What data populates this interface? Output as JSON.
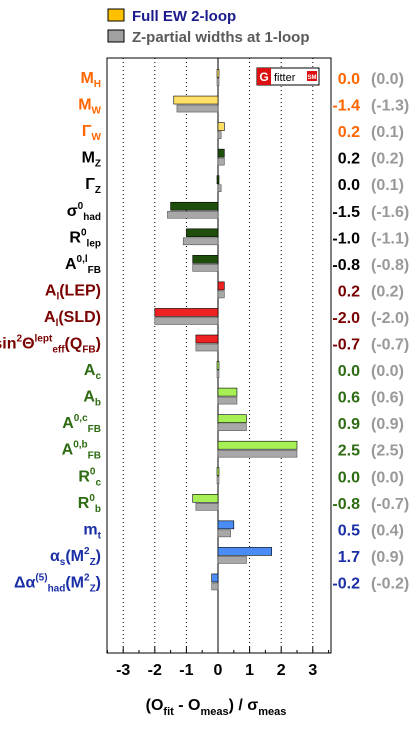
{
  "chart_data": {
    "type": "bar",
    "orientation": "horizontal",
    "legend": [
      {
        "name": "Full EW 2-loop",
        "color": "#ffc000"
      },
      {
        "name": "Z-partial widths at 1-loop",
        "color": "#a0a0a0"
      }
    ],
    "xlabel_parts": [
      {
        "t": "(O",
        "sub": false
      },
      {
        "t": "fit",
        "sub": true
      },
      {
        "t": " - O",
        "sub": false
      },
      {
        "t": "meas",
        "sub": true
      },
      {
        "t": ") /  σ",
        "sub": false
      },
      {
        "t": "meas",
        "sub": true
      }
    ],
    "xlim": [
      -3.5,
      3.5
    ],
    "xticks": [
      -3,
      -2,
      -1,
      0,
      1,
      2,
      3
    ],
    "grid": "vertical dotted at integer ticks",
    "logo": {
      "g": "G",
      "text": "fitter",
      "sm": "SM"
    },
    "rows": [
      {
        "parts": [
          [
            "M",
            ""
          ],
          [
            "H",
            "sub"
          ]
        ],
        "color": "#ff6600",
        "fill": "#ffe066",
        "full": 0.0,
        "partial": 0.0,
        "full_label": "0.0",
        "partial_label": "(0.0)"
      },
      {
        "parts": [
          [
            "M",
            ""
          ],
          [
            "W",
            "sub"
          ]
        ],
        "color": "#ff6600",
        "fill": "#ffe066",
        "full": -1.4,
        "partial": -1.3,
        "full_label": "-1.4",
        "partial_label": "(-1.3)"
      },
      {
        "parts": [
          [
            "Γ",
            ""
          ],
          [
            "W",
            "sub"
          ]
        ],
        "color": "#ff6600",
        "fill": "#ffe066",
        "full": 0.2,
        "partial": 0.1,
        "full_label": "0.2",
        "partial_label": "(0.1)"
      },
      {
        "parts": [
          [
            "M",
            ""
          ],
          [
            "Z",
            "sub"
          ]
        ],
        "color": "#000000",
        "fill": "#1e4d0c",
        "full": 0.2,
        "partial": 0.2,
        "full_label": "0.2",
        "partial_label": "(0.2)"
      },
      {
        "parts": [
          [
            "Γ",
            ""
          ],
          [
            "Z",
            "sub"
          ]
        ],
        "color": "#000000",
        "fill": "#1e4d0c",
        "full": 0.0,
        "partial": 0.1,
        "full_label": "0.0",
        "partial_label": "(0.1)"
      },
      {
        "parts": [
          [
            "σ",
            ""
          ],
          [
            "0",
            "sup"
          ],
          [
            "had",
            "sub"
          ]
        ],
        "color": "#000000",
        "fill": "#1e4d0c",
        "full": -1.5,
        "partial": -1.6,
        "full_label": "-1.5",
        "partial_label": "(-1.6)"
      },
      {
        "parts": [
          [
            "R",
            ""
          ],
          [
            "0",
            "sup"
          ],
          [
            "lep",
            "sub"
          ]
        ],
        "color": "#000000",
        "fill": "#1e4d0c",
        "full": -1.0,
        "partial": -1.1,
        "full_label": "-1.0",
        "partial_label": "(-1.1)"
      },
      {
        "parts": [
          [
            "A",
            ""
          ],
          [
            "0,l",
            "sup"
          ],
          [
            "FB",
            "sub"
          ]
        ],
        "color": "#000000",
        "fill": "#1e4d0c",
        "full": -0.8,
        "partial": -0.8,
        "full_label": "-0.8",
        "partial_label": "(-0.8)"
      },
      {
        "parts": [
          [
            "A",
            ""
          ],
          [
            "l",
            "sub"
          ],
          [
            "(LEP)",
            ""
          ]
        ],
        "color": "#7a0000",
        "fill": "#ee2222",
        "full": 0.2,
        "partial": 0.2,
        "full_label": "0.2",
        "partial_label": "(0.2)"
      },
      {
        "parts": [
          [
            "A",
            ""
          ],
          [
            "l",
            "sub"
          ],
          [
            "(SLD)",
            ""
          ]
        ],
        "color": "#7a0000",
        "fill": "#ee2222",
        "full": -2.0,
        "partial": -2.0,
        "full_label": "-2.0",
        "partial_label": "(-2.0)"
      },
      {
        "parts": [
          [
            "sin",
            ""
          ],
          [
            "2",
            "sup"
          ],
          [
            "Θ",
            ""
          ],
          [
            "lept",
            "sup"
          ],
          [
            "eff",
            "sub"
          ],
          [
            "(Q",
            ""
          ],
          [
            "FB",
            "sub"
          ],
          [
            ")",
            ""
          ]
        ],
        "color": "#7a0000",
        "fill": "#ee2222",
        "full": -0.7,
        "partial": -0.7,
        "full_label": "-0.7",
        "partial_label": "(-0.7)"
      },
      {
        "parts": [
          [
            "A",
            ""
          ],
          [
            "c",
            "sub"
          ]
        ],
        "color": "#2e6b12",
        "fill": "#a6f055",
        "full": 0.0,
        "partial": 0.0,
        "full_label": "0.0",
        "partial_label": "(0.0)"
      },
      {
        "parts": [
          [
            "A",
            ""
          ],
          [
            "b",
            "sub"
          ]
        ],
        "color": "#2e6b12",
        "fill": "#a6f055",
        "full": 0.6,
        "partial": 0.6,
        "full_label": "0.6",
        "partial_label": "(0.6)"
      },
      {
        "parts": [
          [
            "A",
            ""
          ],
          [
            "0,c",
            "sup"
          ],
          [
            "FB",
            "sub"
          ]
        ],
        "color": "#2e6b12",
        "fill": "#a6f055",
        "full": 0.9,
        "partial": 0.9,
        "full_label": "0.9",
        "partial_label": "(0.9)"
      },
      {
        "parts": [
          [
            "A",
            ""
          ],
          [
            "0,b",
            "sup"
          ],
          [
            "FB",
            "sub"
          ]
        ],
        "color": "#2e6b12",
        "fill": "#a6f055",
        "full": 2.5,
        "partial": 2.5,
        "full_label": "2.5",
        "partial_label": "(2.5)"
      },
      {
        "parts": [
          [
            "R",
            ""
          ],
          [
            "0",
            "sup"
          ],
          [
            "c",
            "sub"
          ]
        ],
        "color": "#2e6b12",
        "fill": "#a6f055",
        "full": 0.0,
        "partial": 0.0,
        "full_label": "0.0",
        "partial_label": "(0.0)"
      },
      {
        "parts": [
          [
            "R",
            ""
          ],
          [
            "0",
            "sup"
          ],
          [
            "b",
            "sub"
          ]
        ],
        "color": "#2e6b12",
        "fill": "#a6f055",
        "full": -0.8,
        "partial": -0.7,
        "full_label": "-0.8",
        "partial_label": "(-0.7)"
      },
      {
        "parts": [
          [
            "m",
            ""
          ],
          [
            "t",
            "sub"
          ]
        ],
        "color": "#1a2ea6",
        "fill": "#4a8cf5",
        "full": 0.5,
        "partial": 0.4,
        "full_label": "0.5",
        "partial_label": "(0.4)"
      },
      {
        "parts": [
          [
            "α",
            ""
          ],
          [
            "s",
            "sub"
          ],
          [
            "(M",
            ""
          ],
          [
            "2",
            "sup"
          ],
          [
            "Z",
            "sub"
          ],
          [
            ")",
            ""
          ]
        ],
        "color": "#1a2ea6",
        "fill": "#4a8cf5",
        "full": 1.7,
        "partial": 0.9,
        "full_label": "1.7",
        "partial_label": "(0.9)"
      },
      {
        "parts": [
          [
            "Δα",
            ""
          ],
          [
            "(5)",
            "sup"
          ],
          [
            "had",
            "sub"
          ],
          [
            "(M",
            ""
          ],
          [
            "2",
            "sup"
          ],
          [
            "Z",
            "sub"
          ],
          [
            ")",
            ""
          ]
        ],
        "color": "#1a2ea6",
        "fill": "#4a8cf5",
        "full": -0.2,
        "partial": -0.2,
        "full_label": "-0.2",
        "partial_label": "(-0.2)"
      }
    ]
  }
}
